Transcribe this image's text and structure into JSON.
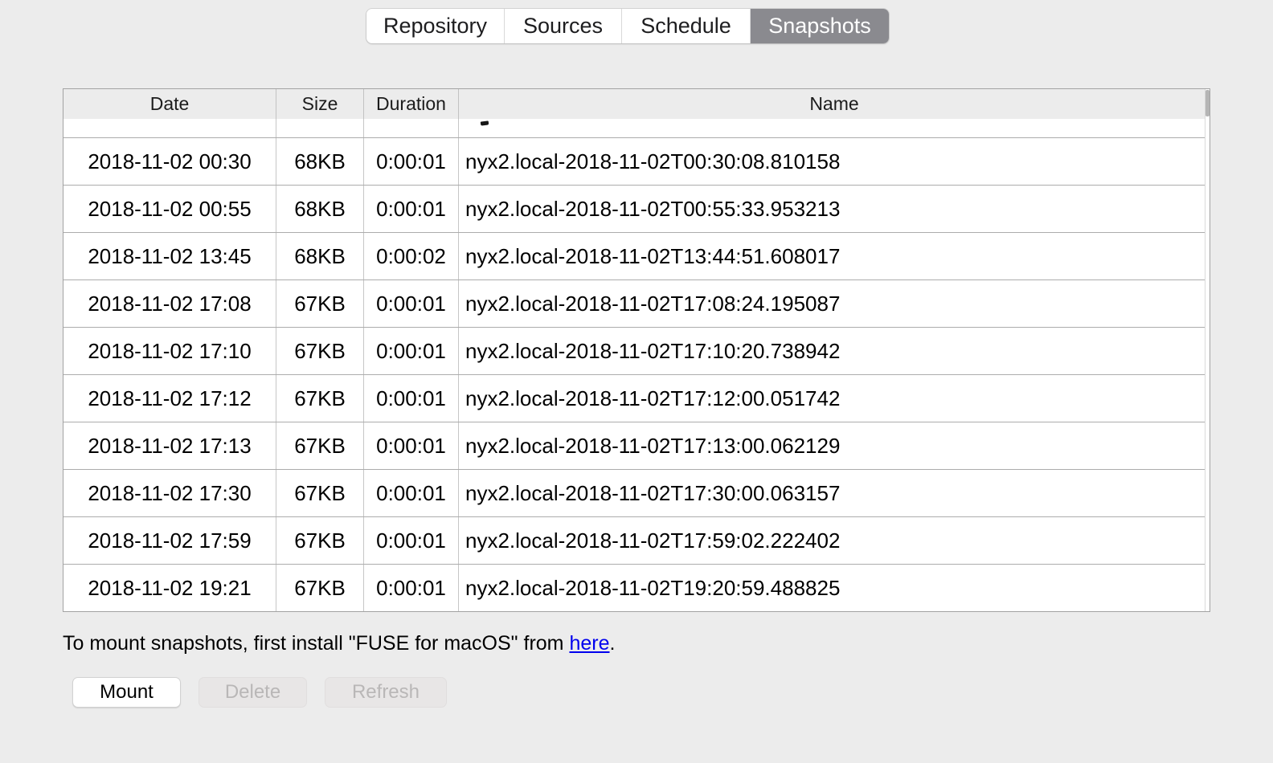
{
  "tabs": {
    "items": [
      {
        "label": "Repository",
        "selected": false
      },
      {
        "label": "Sources",
        "selected": false
      },
      {
        "label": "Schedule",
        "selected": false
      },
      {
        "label": "Snapshots",
        "selected": true
      }
    ]
  },
  "table": {
    "columns": [
      "Date",
      "Size",
      "Duration",
      "Name"
    ],
    "rows": [
      {
        "date": "2018-11-02 00:30",
        "size": "68KB",
        "duration": "0:00:01",
        "name": "nyx2.local-2018-11-02T00:30:08.810158"
      },
      {
        "date": "2018-11-02 00:55",
        "size": "68KB",
        "duration": "0:00:01",
        "name": "nyx2.local-2018-11-02T00:55:33.953213"
      },
      {
        "date": "2018-11-02 13:45",
        "size": "68KB",
        "duration": "0:00:02",
        "name": "nyx2.local-2018-11-02T13:44:51.608017"
      },
      {
        "date": "2018-11-02 17:08",
        "size": "67KB",
        "duration": "0:00:01",
        "name": "nyx2.local-2018-11-02T17:08:24.195087"
      },
      {
        "date": "2018-11-02 17:10",
        "size": "67KB",
        "duration": "0:00:01",
        "name": "nyx2.local-2018-11-02T17:10:20.738942"
      },
      {
        "date": "2018-11-02 17:12",
        "size": "67KB",
        "duration": "0:00:01",
        "name": "nyx2.local-2018-11-02T17:12:00.051742"
      },
      {
        "date": "2018-11-02 17:13",
        "size": "67KB",
        "duration": "0:00:01",
        "name": "nyx2.local-2018-11-02T17:13:00.062129"
      },
      {
        "date": "2018-11-02 17:30",
        "size": "67KB",
        "duration": "0:00:01",
        "name": "nyx2.local-2018-11-02T17:30:00.063157"
      },
      {
        "date": "2018-11-02 17:59",
        "size": "67KB",
        "duration": "0:00:01",
        "name": "nyx2.local-2018-11-02T17:59:02.222402"
      },
      {
        "date": "2018-11-02 19:21",
        "size": "67KB",
        "duration": "0:00:01",
        "name": "nyx2.local-2018-11-02T19:20:59.488825"
      }
    ]
  },
  "note": {
    "prefix": "To mount snapshots, first install \"FUSE for macOS\" from ",
    "link_text": "here",
    "suffix": "."
  },
  "actions": [
    {
      "label": "Mount",
      "enabled": true
    },
    {
      "label": "Delete",
      "enabled": false
    },
    {
      "label": "Refresh",
      "enabled": false
    }
  ],
  "colors": {
    "page_bg": "#ececec",
    "selected_tab_bg": "#8a8a8f",
    "selected_tab_text": "#ffffff",
    "link": "#0000ee"
  }
}
